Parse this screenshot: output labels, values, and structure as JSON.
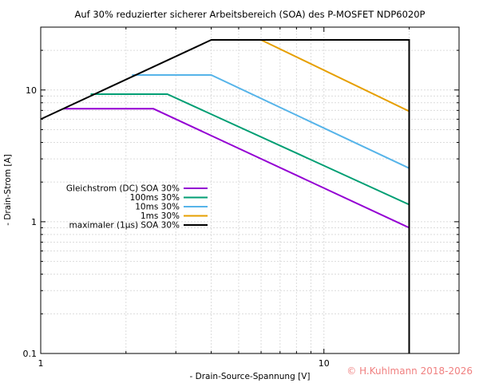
{
  "chart_data": {
    "type": "line",
    "title": "Auf 30% reduzierter sicherer Arbeitsbereich (SOA) des P-MOSFET NDP6020P",
    "xlabel": "- Drain-Source-Spannung [V]",
    "ylabel": "- Drain-Strom [A]",
    "xscale": "log",
    "yscale": "log",
    "xlim": [
      1,
      30
    ],
    "ylim": [
      0.1,
      30
    ],
    "xticks": [
      {
        "value": 1,
        "label": "1"
      },
      {
        "value": 10,
        "label": "10"
      }
    ],
    "yticks": [
      {
        "value": 0.1,
        "label": "0.1"
      },
      {
        "value": 1,
        "label": "1"
      },
      {
        "value": 10,
        "label": "10"
      }
    ],
    "grid": true,
    "legend_position": "left",
    "series": [
      {
        "name": "Gleichstrom (DC) SOA 30%",
        "color": "#9400d3",
        "x": [
          1.2,
          2.5,
          20
        ],
        "y": [
          7.2,
          7.2,
          0.9
        ]
      },
      {
        "name": "100ms 30%",
        "color": "#009e73",
        "x": [
          1.5,
          2.8,
          20
        ],
        "y": [
          9.3,
          9.3,
          1.35
        ]
      },
      {
        "name": "10ms 30%",
        "color": "#56b4e9",
        "x": [
          2.1,
          4.0,
          20
        ],
        "y": [
          13,
          13,
          2.55
        ]
      },
      {
        "name": "1ms 30%",
        "color": "#e69f00",
        "x": [
          6.0,
          20
        ],
        "y": [
          24,
          6.9
        ]
      },
      {
        "name": "maximaler (1µs) SOA 30%",
        "color": "#000000",
        "x": [
          1,
          4.0,
          20,
          20
        ],
        "y": [
          6.0,
          24,
          24,
          0.1
        ]
      }
    ]
  },
  "copyright": {
    "text": "© H.Kuhlmann 2018-2026",
    "color": "#f08080"
  }
}
